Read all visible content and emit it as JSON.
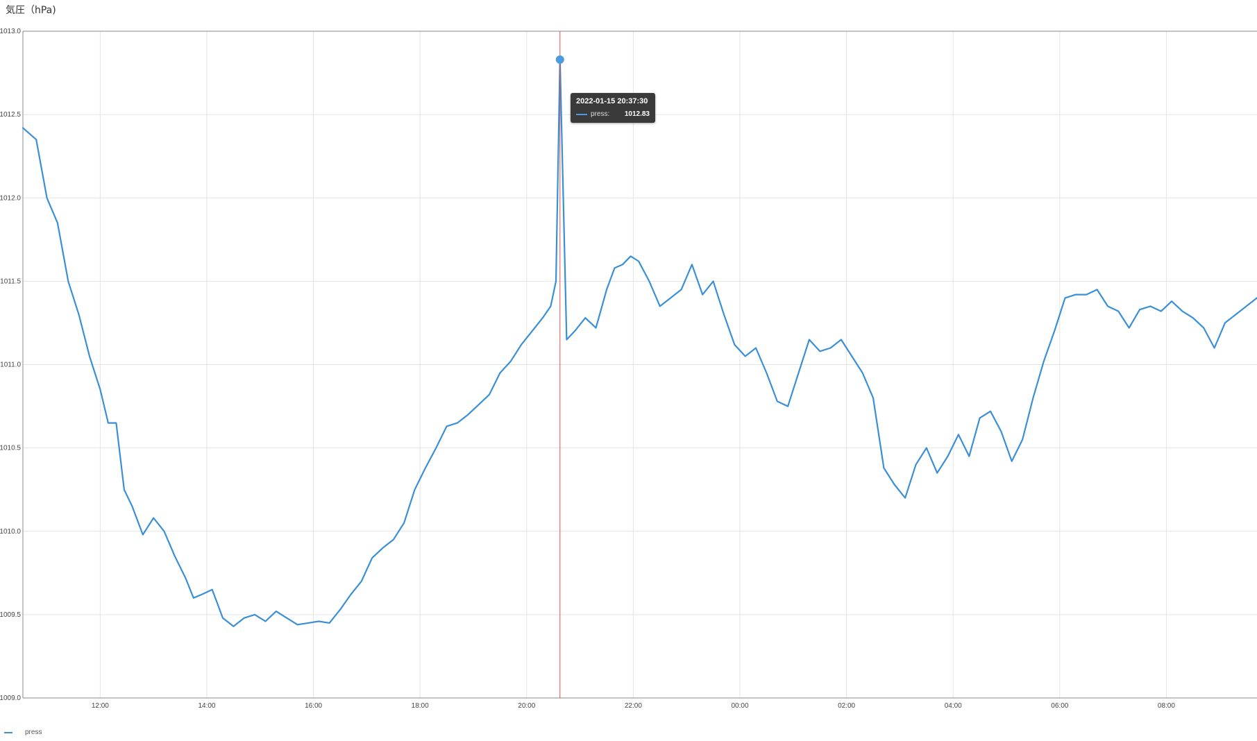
{
  "chart_data": {
    "type": "line",
    "title": "気圧（hPa)",
    "ylim": [
      1009.0,
      1013.0
    ],
    "y_ticks": [
      "1009.0",
      "1009.5",
      "1010.0",
      "1010.5",
      "1011.0",
      "1011.5",
      "1012.0",
      "1012.5",
      "1013.0"
    ],
    "x_ticks": [
      "12:00",
      "14:00",
      "16:00",
      "18:00",
      "20:00",
      "22:00",
      "00:00",
      "02:00",
      "04:00",
      "06:00",
      "08:00"
    ],
    "x_start_hour": 10.55,
    "x_end_hour": 33.7,
    "grid": true,
    "legend_position": "bottom-left",
    "series": [
      {
        "name": "press",
        "color": "#3a8fd6",
        "x_hours": [
          10.55,
          10.8,
          11.0,
          11.2,
          11.4,
          11.6,
          11.8,
          12.0,
          12.15,
          12.3,
          12.45,
          12.6,
          12.8,
          13.0,
          13.2,
          13.4,
          13.6,
          13.75,
          13.9,
          14.1,
          14.3,
          14.5,
          14.7,
          14.9,
          15.1,
          15.3,
          15.5,
          15.7,
          15.9,
          16.1,
          16.3,
          16.5,
          16.7,
          16.9,
          17.1,
          17.3,
          17.5,
          17.7,
          17.9,
          18.1,
          18.3,
          18.5,
          18.7,
          18.9,
          19.1,
          19.3,
          19.5,
          19.7,
          19.9,
          20.1,
          20.3,
          20.45,
          20.55,
          20.625,
          20.75,
          20.9,
          21.1,
          21.3,
          21.5,
          21.65,
          21.8,
          21.95,
          22.1,
          22.3,
          22.5,
          22.7,
          22.9,
          23.1,
          23.3,
          23.5,
          23.7,
          23.9,
          24.1,
          24.3,
          24.5,
          24.7,
          24.9,
          25.1,
          25.3,
          25.5,
          25.7,
          25.9,
          26.1,
          26.3,
          26.5,
          26.7,
          26.9,
          27.1,
          27.3,
          27.5,
          27.7,
          27.9,
          28.1,
          28.3,
          28.5,
          28.7,
          28.9,
          29.1,
          29.3,
          29.5,
          29.7,
          29.9,
          30.1,
          30.3,
          30.5,
          30.7,
          30.9,
          31.1,
          31.3,
          31.5,
          31.7,
          31.9,
          32.1,
          32.3,
          32.5,
          32.7,
          32.9,
          33.1,
          33.3,
          33.5,
          33.7
        ],
        "values": [
          1012.42,
          1012.35,
          1012.0,
          1011.85,
          1011.5,
          1011.3,
          1011.05,
          1010.85,
          1010.65,
          1010.65,
          1010.25,
          1010.15,
          1009.98,
          1010.08,
          1010.0,
          1009.85,
          1009.72,
          1009.6,
          1009.62,
          1009.65,
          1009.48,
          1009.43,
          1009.48,
          1009.5,
          1009.46,
          1009.52,
          1009.48,
          1009.44,
          1009.45,
          1009.46,
          1009.45,
          1009.53,
          1009.62,
          1009.7,
          1009.84,
          1009.9,
          1009.95,
          1010.05,
          1010.25,
          1010.38,
          1010.5,
          1010.63,
          1010.65,
          1010.7,
          1010.76,
          1010.82,
          1010.95,
          1011.02,
          1011.12,
          1011.2,
          1011.28,
          1011.35,
          1011.5,
          1012.83,
          1011.15,
          1011.2,
          1011.28,
          1011.22,
          1011.45,
          1011.58,
          1011.6,
          1011.65,
          1011.62,
          1011.5,
          1011.35,
          1011.4,
          1011.45,
          1011.6,
          1011.42,
          1011.5,
          1011.3,
          1011.12,
          1011.05,
          1011.1,
          1010.95,
          1010.78,
          1010.75,
          1010.95,
          1011.15,
          1011.08,
          1011.1,
          1011.15,
          1011.05,
          1010.95,
          1010.8,
          1010.38,
          1010.28,
          1010.2,
          1010.4,
          1010.5,
          1010.35,
          1010.45,
          1010.58,
          1010.45,
          1010.68,
          1010.72,
          1010.6,
          1010.42,
          1010.55,
          1010.8,
          1011.02,
          1011.2,
          1011.4,
          1011.42,
          1011.42,
          1011.45,
          1011.35,
          1011.32,
          1011.22,
          1011.33,
          1011.35,
          1011.32,
          1011.38,
          1011.32,
          1011.28,
          1011.22,
          1011.1,
          1011.25,
          1011.3,
          1011.35,
          1011.4
        ]
      }
    ],
    "highlight": {
      "x_hour": 20.625,
      "value": 1012.83
    }
  },
  "tooltip": {
    "time": "2022-01-15 20:37:30",
    "series_label": "press:",
    "value": "1012.83"
  },
  "legend": {
    "label": "press"
  },
  "colors": {
    "line": "#3a8fd6",
    "marker": "#4a9be0",
    "crosshair": "#d9534f",
    "grid": "#e4e4e4",
    "axis": "#888888"
  }
}
